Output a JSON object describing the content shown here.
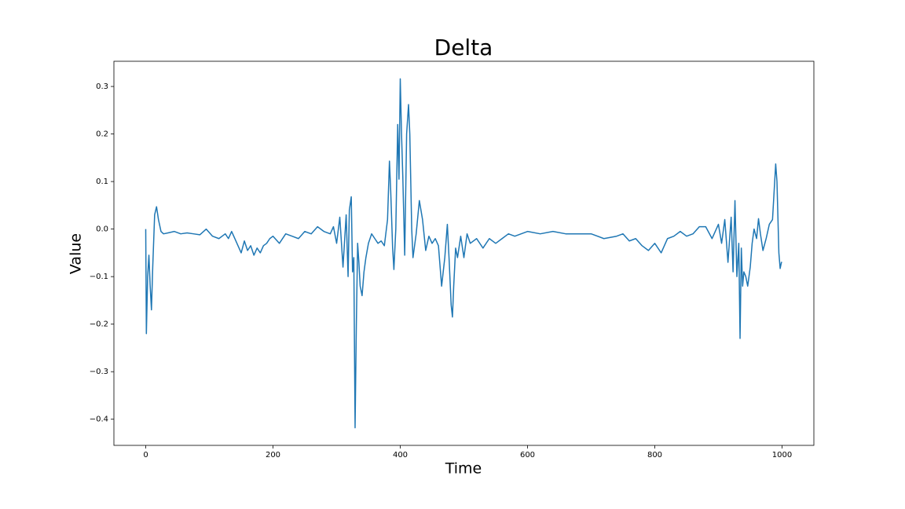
{
  "chart_data": {
    "type": "line",
    "title": "Delta",
    "x_label": "Time",
    "y_label": "Value",
    "color": "#1f77b4",
    "x": [
      0,
      1,
      3,
      5,
      7,
      9,
      11,
      14,
      17,
      20,
      24,
      28,
      35,
      45,
      55,
      65,
      75,
      85,
      95,
      105,
      115,
      125,
      130,
      135,
      140,
      145,
      150,
      155,
      160,
      165,
      170,
      175,
      180,
      185,
      190,
      195,
      200,
      210,
      220,
      230,
      240,
      250,
      260,
      270,
      280,
      290,
      295,
      300,
      305,
      310,
      315,
      318,
      320,
      323,
      325,
      327,
      329,
      331,
      333,
      335,
      337,
      340,
      343,
      346,
      350,
      355,
      360,
      365,
      370,
      375,
      380,
      383,
      385,
      388,
      390,
      393,
      396,
      398,
      400,
      402,
      404,
      407,
      410,
      413,
      415,
      418,
      420,
      425,
      430,
      435,
      440,
      445,
      450,
      455,
      460,
      465,
      470,
      474,
      477,
      480,
      482,
      484,
      487,
      490,
      495,
      500,
      505,
      510,
      520,
      530,
      540,
      550,
      560,
      570,
      580,
      590,
      600,
      620,
      640,
      660,
      680,
      700,
      720,
      740,
      750,
      760,
      770,
      780,
      790,
      800,
      810,
      820,
      830,
      840,
      850,
      860,
      870,
      880,
      890,
      900,
      905,
      910,
      915,
      920,
      923,
      926,
      929,
      932,
      934,
      936,
      938,
      940,
      943,
      946,
      950,
      953,
      956,
      960,
      963,
      966,
      970,
      975,
      980,
      985,
      990,
      992,
      995,
      997,
      999,
      1000
    ],
    "values": [
      0.0,
      -0.22,
      -0.1,
      -0.055,
      -0.12,
      -0.17,
      -0.08,
      0.03,
      0.047,
      0.02,
      -0.005,
      -0.01,
      -0.008,
      -0.005,
      -0.01,
      -0.008,
      -0.01,
      -0.012,
      0.0,
      -0.015,
      -0.02,
      -0.01,
      -0.02,
      -0.005,
      -0.02,
      -0.035,
      -0.05,
      -0.025,
      -0.045,
      -0.035,
      -0.055,
      -0.04,
      -0.05,
      -0.035,
      -0.03,
      -0.02,
      -0.015,
      -0.03,
      -0.01,
      -0.015,
      -0.02,
      -0.005,
      -0.01,
      0.005,
      -0.005,
      -0.01,
      0.005,
      -0.03,
      0.025,
      -0.08,
      0.03,
      -0.1,
      0.04,
      0.068,
      -0.09,
      -0.06,
      -0.418,
      -0.2,
      -0.03,
      -0.07,
      -0.12,
      -0.14,
      -0.09,
      -0.06,
      -0.03,
      -0.01,
      -0.02,
      -0.03,
      -0.025,
      -0.035,
      0.02,
      0.143,
      0.08,
      -0.04,
      -0.085,
      0.0,
      0.22,
      0.105,
      0.316,
      0.2,
      0.11,
      -0.055,
      0.2,
      0.262,
      0.2,
      0.0,
      -0.06,
      -0.01,
      0.06,
      0.02,
      -0.045,
      -0.015,
      -0.03,
      -0.02,
      -0.035,
      -0.12,
      -0.06,
      0.01,
      -0.07,
      -0.16,
      -0.185,
      -0.12,
      -0.04,
      -0.06,
      -0.015,
      -0.06,
      -0.01,
      -0.03,
      -0.02,
      -0.04,
      -0.02,
      -0.03,
      -0.02,
      -0.01,
      -0.015,
      -0.01,
      -0.005,
      -0.01,
      -0.005,
      -0.01,
      -0.01,
      -0.01,
      -0.02,
      -0.015,
      -0.01,
      -0.025,
      -0.02,
      -0.035,
      -0.045,
      -0.03,
      -0.05,
      -0.02,
      -0.015,
      -0.005,
      -0.015,
      -0.01,
      0.005,
      0.005,
      -0.02,
      0.01,
      -0.03,
      0.02,
      -0.07,
      0.025,
      -0.09,
      0.06,
      -0.1,
      -0.03,
      -0.23,
      -0.04,
      -0.12,
      -0.09,
      -0.1,
      -0.12,
      -0.08,
      -0.03,
      0.0,
      -0.02,
      0.022,
      -0.01,
      -0.045,
      -0.02,
      0.01,
      0.02,
      0.137,
      0.1,
      -0.05,
      -0.083,
      -0.07,
      -0.07
    ],
    "xlim": [
      -50,
      1050
    ],
    "ylim": [
      -0.455,
      0.353
    ],
    "xticks": [
      0,
      200,
      400,
      600,
      800,
      1000
    ],
    "yticks": [
      {
        "value": -0.4,
        "label": "−0.4"
      },
      {
        "value": -0.3,
        "label": "−0.3"
      },
      {
        "value": -0.2,
        "label": "−0.2"
      },
      {
        "value": -0.1,
        "label": "−0.1"
      },
      {
        "value": 0,
        "label": "0.0"
      },
      0.1,
      0.2,
      0.3
    ]
  }
}
